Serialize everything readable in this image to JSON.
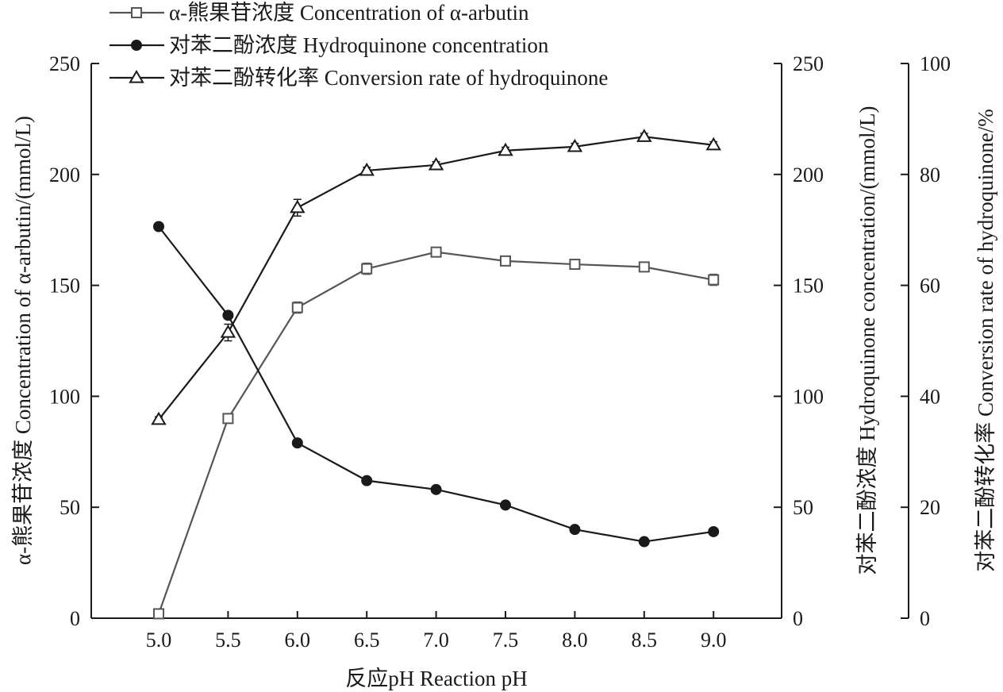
{
  "chart_data": {
    "type": "line",
    "x": [
      "5.0",
      "5.5",
      "6.0",
      "6.5",
      "7.0",
      "7.5",
      "8.0",
      "8.5",
      "9.0"
    ],
    "xlabel": "反应pH Reaction pH",
    "y_left": {
      "label": "α-熊果苷浓度 Concentration of α-arbutin/(mmol/L)",
      "ylim": [
        0,
        250
      ],
      "ticks": [
        "0",
        "50",
        "100",
        "150",
        "200",
        "250"
      ]
    },
    "y_right1": {
      "label": "对苯二酚浓度 Hydroquinone concentration/(mmol/L)",
      "ylim": [
        0,
        250
      ],
      "ticks": [
        "0",
        "50",
        "100",
        "150",
        "200",
        "250"
      ]
    },
    "y_right2": {
      "label": "对苯二酚转化率 Conversion rate of hydroquinone/%",
      "ylim": [
        0,
        100
      ],
      "ticks": [
        "0",
        "20",
        "40",
        "60",
        "80",
        "100"
      ]
    },
    "series": [
      {
        "name": "α-熊果苷浓度 Concentration of α-arbutin",
        "axis": "left",
        "marker": "open-square",
        "color": "#555555",
        "values": [
          2,
          90,
          140,
          157.5,
          165,
          161,
          159.5,
          158.3,
          152.5
        ],
        "errors": [
          1,
          1.5,
          2.5,
          2.5,
          2,
          2,
          2,
          2,
          2.5
        ]
      },
      {
        "name": "对苯二酚浓度 Hydroquinone concentration",
        "axis": "right1",
        "marker": "filled-circle",
        "color": "#1a1a1a",
        "values": [
          176.5,
          136.5,
          79,
          62,
          58,
          51,
          40,
          34.5,
          39
        ],
        "errors": [
          1.5,
          1.5,
          1,
          1.5,
          1,
          1,
          1,
          1,
          1
        ]
      },
      {
        "name": "对苯二酚转化率 Conversion rate of hydroquinone",
        "axis": "right2",
        "marker": "open-triangle",
        "color": "#1a1a1a",
        "values": [
          35.8,
          51.5,
          74,
          80.7,
          81.7,
          84.3,
          85,
          86.8,
          85.3
        ],
        "errors": [
          0.5,
          1.5,
          1.5,
          0.6,
          0.6,
          0.6,
          0.6,
          0.6,
          0.6
        ]
      }
    ],
    "legend_position": "top-left",
    "grid": false
  }
}
